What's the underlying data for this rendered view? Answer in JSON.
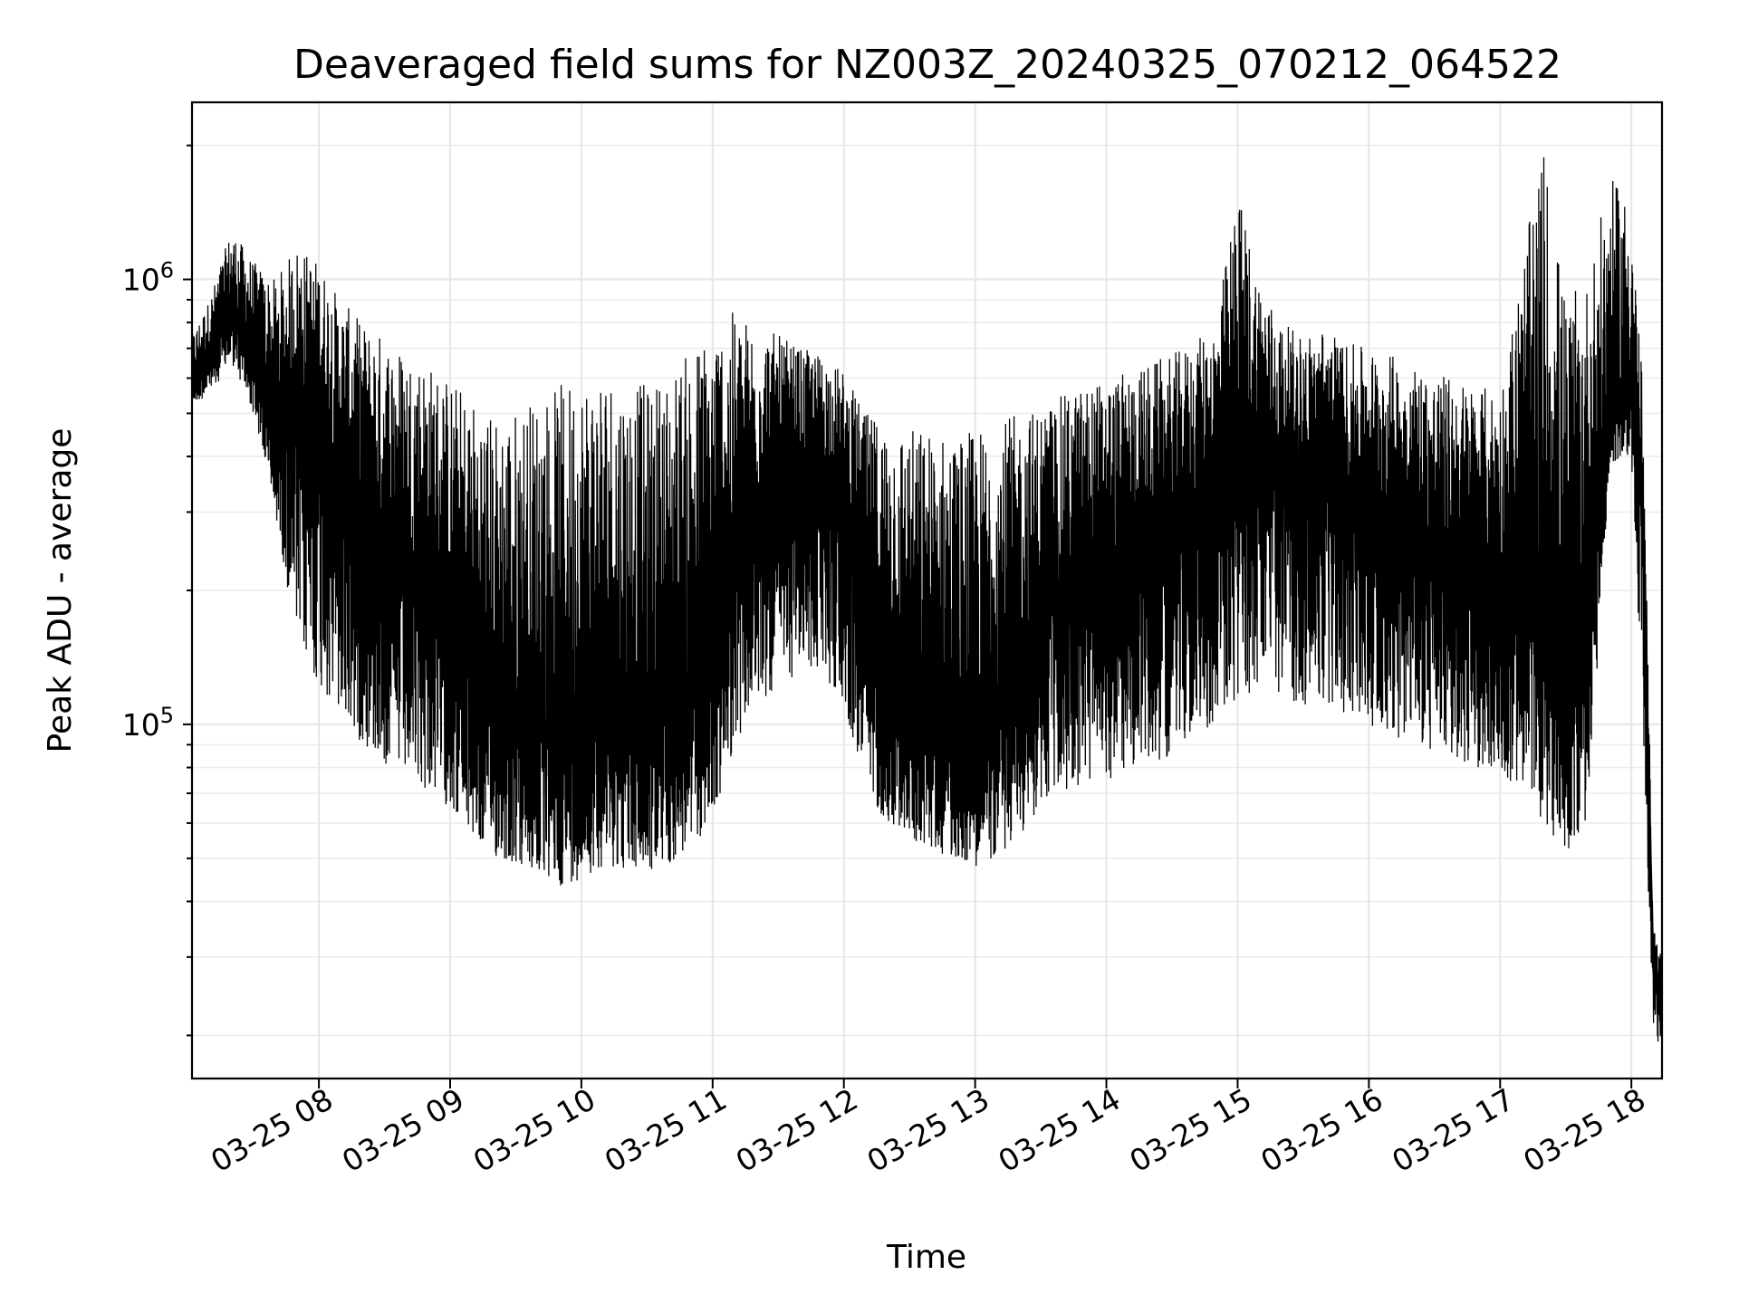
{
  "chart_data": {
    "type": "line",
    "title": "Deaveraged field sums for NZ003Z_20240325_070212_064522",
    "xlabel": "Time",
    "ylabel": "Peak ADU - average",
    "yscale": "log",
    "grid": true,
    "x_tick_labels": [
      "03-25 08",
      "03-25 09",
      "03-25 10",
      "03-25 11",
      "03-25 12",
      "03-25 13",
      "03-25 14",
      "03-25 15",
      "03-25 16",
      "03-25 17",
      "03-25 18"
    ],
    "x_range": [
      "2024-03-25 07:02",
      "2024-03-25 18:14"
    ],
    "y_range": [
      16000,
      2500000
    ],
    "y_ticks": [
      {
        "value": 100000,
        "base": "10",
        "exp": "5"
      },
      {
        "value": 1000000,
        "base": "10",
        "exp": "6"
      }
    ],
    "series": [
      {
        "color": "#000000",
        "x": [
          "2024-03-25 07:02",
          "2024-03-25 07:10",
          "2024-03-25 07:20",
          "2024-03-25 07:30",
          "2024-03-25 07:40",
          "2024-03-25 07:50",
          "2024-03-25 08:00",
          "2024-03-25 08:10",
          "2024-03-25 08:20",
          "2024-03-25 08:30",
          "2024-03-25 08:40",
          "2024-03-25 08:50",
          "2024-03-25 09:00",
          "2024-03-25 09:10",
          "2024-03-25 09:20",
          "2024-03-25 09:30",
          "2024-03-25 09:40",
          "2024-03-25 09:50",
          "2024-03-25 10:00",
          "2024-03-25 10:10",
          "2024-03-25 10:20",
          "2024-03-25 10:30",
          "2024-03-25 10:40",
          "2024-03-25 10:50",
          "2024-03-25 11:00",
          "2024-03-25 11:10",
          "2024-03-25 11:20",
          "2024-03-25 11:30",
          "2024-03-25 11:40",
          "2024-03-25 11:50",
          "2024-03-25 12:00",
          "2024-03-25 12:10",
          "2024-03-25 12:20",
          "2024-03-25 12:30",
          "2024-03-25 12:40",
          "2024-03-25 12:50",
          "2024-03-25 13:00",
          "2024-03-25 13:10",
          "2024-03-25 13:20",
          "2024-03-25 13:30",
          "2024-03-25 13:40",
          "2024-03-25 13:50",
          "2024-03-25 14:00",
          "2024-03-25 14:10",
          "2024-03-25 14:20",
          "2024-03-25 14:30",
          "2024-03-25 14:40",
          "2024-03-25 14:50",
          "2024-03-25 15:00",
          "2024-03-25 15:10",
          "2024-03-25 15:20",
          "2024-03-25 15:30",
          "2024-03-25 15:40",
          "2024-03-25 15:50",
          "2024-03-25 16:00",
          "2024-03-25 16:10",
          "2024-03-25 16:20",
          "2024-03-25 16:30",
          "2024-03-25 16:40",
          "2024-03-25 16:50",
          "2024-03-25 17:00",
          "2024-03-25 17:10",
          "2024-03-25 17:20",
          "2024-03-25 17:30",
          "2024-03-25 17:40",
          "2024-03-25 17:50",
          "2024-03-25 18:00",
          "2024-03-25 18:05",
          "2024-03-25 18:10",
          "2024-03-25 18:14"
        ],
        "y": [
          600000,
          700000,
          850000,
          700000,
          450000,
          550000,
          500000,
          380000,
          300000,
          250000,
          220000,
          230000,
          160000,
          130000,
          110000,
          100000,
          100000,
          95000,
          100000,
          110000,
          105000,
          100000,
          110000,
          120000,
          150000,
          220000,
          300000,
          350000,
          380000,
          400000,
          330000,
          200000,
          150000,
          120000,
          110000,
          100000,
          100000,
          110000,
          130000,
          180000,
          200000,
          210000,
          220000,
          240000,
          260000,
          280000,
          320000,
          350000,
          420000,
          440000,
          400000,
          380000,
          400000,
          350000,
          330000,
          300000,
          280000,
          250000,
          240000,
          230000,
          220000,
          200000,
          180000,
          150000,
          200000,
          450000,
          600000,
          300000,
          30000,
          25000
        ],
        "lo": [
          520000,
          550000,
          650000,
          500000,
          300000,
          150000,
          120000,
          100000,
          90000,
          80000,
          75000,
          70000,
          65000,
          55000,
          50000,
          48000,
          45000,
          43000,
          45000,
          48000,
          47000,
          46000,
          48000,
          52000,
          60000,
          90000,
          110000,
          120000,
          130000,
          130000,
          110000,
          70000,
          60000,
          55000,
          52000,
          50000,
          48000,
          50000,
          55000,
          65000,
          70000,
          72000,
          75000,
          78000,
          82000,
          85000,
          95000,
          100000,
          110000,
          120000,
          115000,
          110000,
          110000,
          105000,
          100000,
          95000,
          90000,
          85000,
          82000,
          80000,
          75000,
          70000,
          60000,
          50000,
          60000,
          380000,
          400000,
          100000,
          20000,
          18000
        ],
        "hi": [
          750000,
          900000,
          1300000,
          1100000,
          1000000,
          1200000,
          1100000,
          900000,
          800000,
          750000,
          700000,
          650000,
          600000,
          550000,
          500000,
          520000,
          550000,
          580000,
          620000,
          650000,
          600000,
          580000,
          620000,
          700000,
          800000,
          850000,
          800000,
          750000,
          700000,
          680000,
          620000,
          500000,
          480000,
          470000,
          460000,
          450000,
          460000,
          480000,
          500000,
          520000,
          550000,
          580000,
          600000,
          620000,
          650000,
          680000,
          720000,
          800000,
          1600000,
          1000000,
          800000,
          750000,
          780000,
          720000,
          700000,
          680000,
          650000,
          620000,
          600000,
          580000,
          560000,
          1100000,
          2000000,
          900000,
          1000000,
          1700000,
          1500000,
          600000,
          35000,
          30000
        ]
      }
    ]
  }
}
